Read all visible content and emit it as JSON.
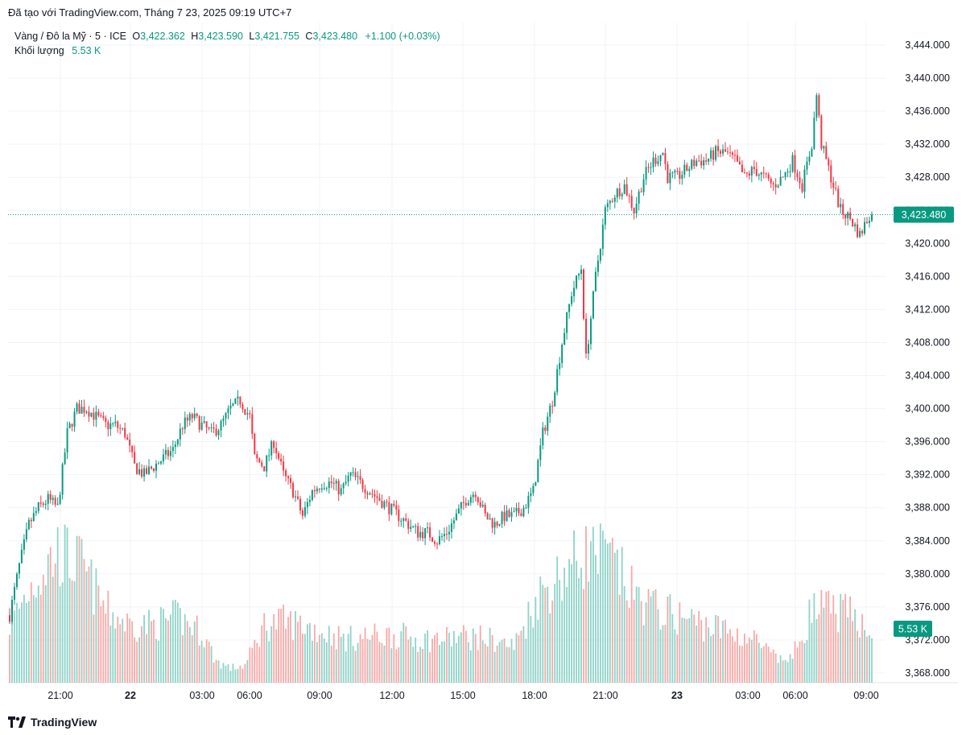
{
  "caption": "Đã tạo với TradingView.com, Tháng 7 23, 2025 09:19 UTC+7",
  "legend": {
    "symbol": "Vàng / Đô la Mỹ · 5 · ICE",
    "open_label": "O",
    "open": "3,422.362",
    "high_label": "H",
    "high": "3,423.590",
    "low_label": "L",
    "low": "3,421.755",
    "close_label": "C",
    "close": "3,423.480",
    "change": "+1.100 (+0.03%)",
    "volume_label": "Khối lượng",
    "volume": "5.53 K"
  },
  "footer": {
    "brand": "TradingView"
  },
  "colors": {
    "up": "#089981",
    "down": "#f23645",
    "volume_up": "#8fd3c8",
    "volume_down": "#f7a9a7",
    "grid": "#f0f3fa",
    "axis_text": "#131722"
  },
  "chart_data": {
    "type": "candlestick",
    "y_axis": {
      "ticks": [
        "3,444.000",
        "3,440.000",
        "3,436.000",
        "3,432.000",
        "3,428.000",
        "3,424.000",
        "3,420.000",
        "3,416.000",
        "3,412.000",
        "3,408.000",
        "3,404.000",
        "3,400.000",
        "3,396.000",
        "3,392.000",
        "3,388.000",
        "3,384.000",
        "3,380.000",
        "3,376.000",
        "3,372.000",
        "3,368.000"
      ],
      "range": [
        3366.5,
        3446
      ]
    },
    "x_axis": {
      "ticks": [
        {
          "label": "21:00",
          "bold": false
        },
        {
          "label": "22",
          "bold": true
        },
        {
          "label": "03:00",
          "bold": false
        },
        {
          "label": "06:00",
          "bold": false
        },
        {
          "label": "09:00",
          "bold": false
        },
        {
          "label": "12:00",
          "bold": false
        },
        {
          "label": "15:00",
          "bold": false
        },
        {
          "label": "18:00",
          "bold": false
        },
        {
          "label": "21:00",
          "bold": false
        },
        {
          "label": "23",
          "bold": true
        },
        {
          "label": "03:00",
          "bold": false
        },
        {
          "label": "06:00",
          "bold": false
        },
        {
          "label": "09:00",
          "bold": false
        }
      ]
    },
    "last_price": 3423.48,
    "last_price_label": "3,423.480",
    "volume_label": "5.53 K",
    "price_path": [
      [
        0,
        3375
      ],
      [
        4,
        3381
      ],
      [
        8,
        3386
      ],
      [
        12,
        3388
      ],
      [
        16,
        3389
      ],
      [
        20,
        3388
      ],
      [
        24,
        3397
      ],
      [
        28,
        3400
      ],
      [
        32,
        3400
      ],
      [
        36,
        3399
      ],
      [
        40,
        3398
      ],
      [
        44,
        3398
      ],
      [
        48,
        3397
      ],
      [
        52,
        3393
      ],
      [
        56,
        3392
      ],
      [
        60,
        3393
      ],
      [
        64,
        3394
      ],
      [
        68,
        3395
      ],
      [
        72,
        3398
      ],
      [
        76,
        3399
      ],
      [
        80,
        3398
      ],
      [
        84,
        3397
      ],
      [
        88,
        3398
      ],
      [
        92,
        3400
      ],
      [
        96,
        3401
      ],
      [
        100,
        3399
      ],
      [
        102,
        3394
      ],
      [
        106,
        3393
      ],
      [
        110,
        3396
      ],
      [
        114,
        3392
      ],
      [
        118,
        3390
      ],
      [
        122,
        3387
      ],
      [
        126,
        3390
      ],
      [
        130,
        3391
      ],
      [
        134,
        3391
      ],
      [
        138,
        3390
      ],
      [
        142,
        3392
      ],
      [
        146,
        3391
      ],
      [
        150,
        3390
      ],
      [
        154,
        3389
      ],
      [
        158,
        3388
      ],
      [
        162,
        3387
      ],
      [
        166,
        3386
      ],
      [
        170,
        3385
      ],
      [
        174,
        3385
      ],
      [
        178,
        3384
      ],
      [
        182,
        3385
      ],
      [
        186,
        3387
      ],
      [
        190,
        3389
      ],
      [
        194,
        3390
      ],
      [
        198,
        3387
      ],
      [
        202,
        3386
      ],
      [
        206,
        3387
      ],
      [
        210,
        3387
      ],
      [
        214,
        3388
      ],
      [
        218,
        3390
      ],
      [
        222,
        3397
      ],
      [
        226,
        3401
      ],
      [
        230,
        3408
      ],
      [
        234,
        3414
      ],
      [
        238,
        3417
      ],
      [
        240,
        3406
      ],
      [
        244,
        3416
      ],
      [
        248,
        3424
      ],
      [
        252,
        3426
      ],
      [
        256,
        3427
      ],
      [
        260,
        3424
      ],
      [
        264,
        3428
      ],
      [
        268,
        3430
      ],
      [
        272,
        3431
      ],
      [
        274,
        3428
      ],
      [
        278,
        3428
      ],
      [
        282,
        3429
      ],
      [
        286,
        3430
      ],
      [
        290,
        3430
      ],
      [
        294,
        3431
      ],
      [
        298,
        3431
      ],
      [
        302,
        3430
      ],
      [
        306,
        3428
      ],
      [
        310,
        3429
      ],
      [
        314,
        3428
      ],
      [
        318,
        3427
      ],
      [
        322,
        3428
      ],
      [
        326,
        3430
      ],
      [
        330,
        3427
      ],
      [
        334,
        3432
      ],
      [
        336,
        3438
      ],
      [
        338,
        3432
      ],
      [
        342,
        3428
      ],
      [
        346,
        3424
      ],
      [
        350,
        3423
      ],
      [
        354,
        3421
      ],
      [
        358,
        3423.48
      ]
    ],
    "volume_profile": [
      [
        0,
        0.4
      ],
      [
        10,
        0.7
      ],
      [
        20,
        0.9
      ],
      [
        30,
        0.8
      ],
      [
        40,
        0.5
      ],
      [
        50,
        0.4
      ],
      [
        60,
        0.4
      ],
      [
        70,
        0.45
      ],
      [
        80,
        0.35
      ],
      [
        86,
        0.15
      ],
      [
        92,
        0.1
      ],
      [
        98,
        0.12
      ],
      [
        106,
        0.4
      ],
      [
        114,
        0.42
      ],
      [
        122,
        0.4
      ],
      [
        130,
        0.35
      ],
      [
        140,
        0.3
      ],
      [
        150,
        0.32
      ],
      [
        160,
        0.33
      ],
      [
        170,
        0.3
      ],
      [
        180,
        0.3
      ],
      [
        190,
        0.32
      ],
      [
        200,
        0.3
      ],
      [
        210,
        0.25
      ],
      [
        220,
        0.6
      ],
      [
        230,
        0.75
      ],
      [
        240,
        0.9
      ],
      [
        250,
        0.85
      ],
      [
        260,
        0.6
      ],
      [
        270,
        0.5
      ],
      [
        280,
        0.45
      ],
      [
        290,
        0.4
      ],
      [
        300,
        0.35
      ],
      [
        310,
        0.3
      ],
      [
        320,
        0.15
      ],
      [
        326,
        0.18
      ],
      [
        334,
        0.5
      ],
      [
        344,
        0.5
      ],
      [
        352,
        0.45
      ],
      [
        359,
        0.4
      ]
    ]
  }
}
